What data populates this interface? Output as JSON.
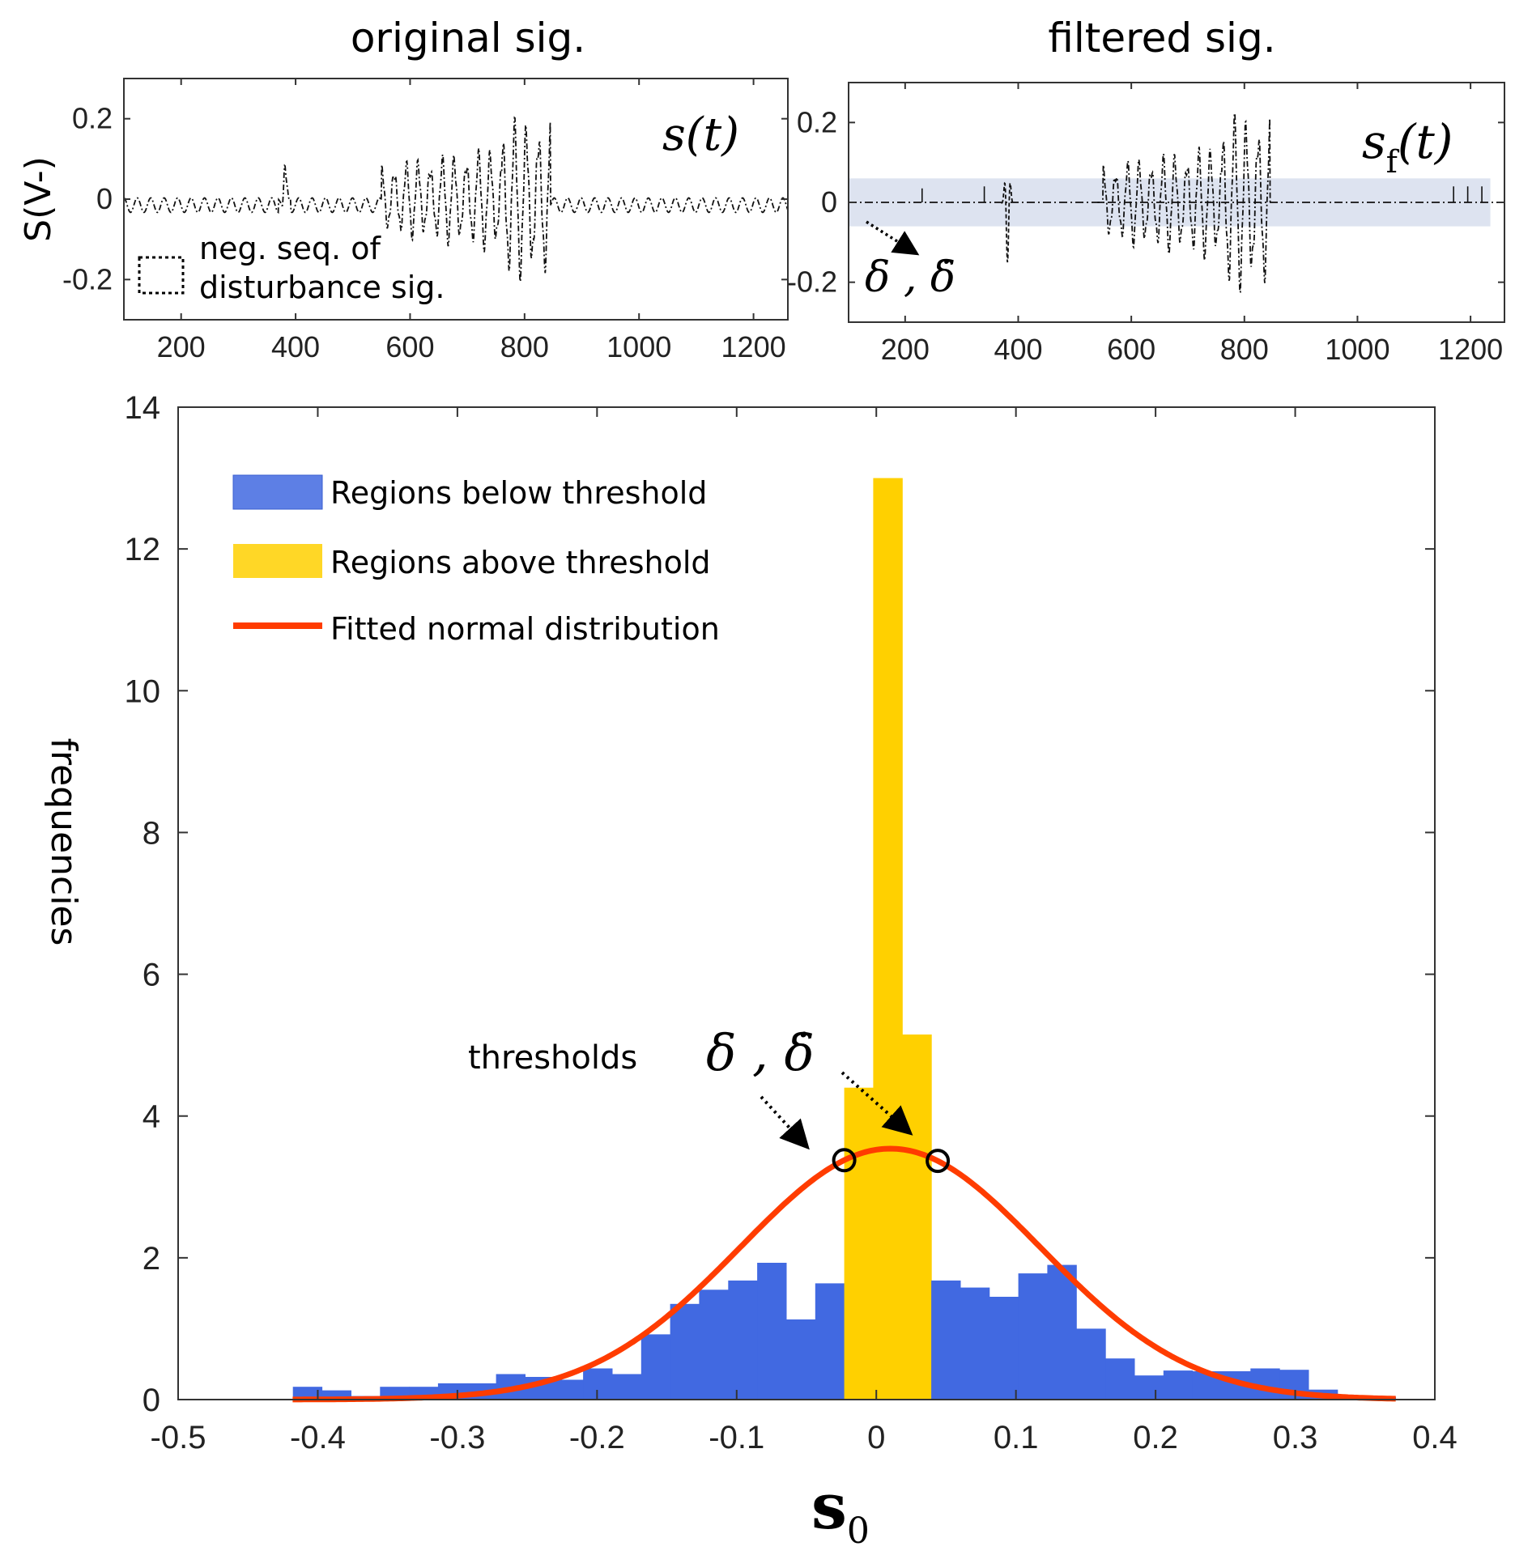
{
  "colors": {
    "below": "#4169e1",
    "above": "#ffd000",
    "fit": "#ff3c00",
    "band": "#dde3f0",
    "signal": "#111111"
  },
  "chart_data": [
    {
      "type": "line",
      "title": "original sig.",
      "ylabel": "S(V-)",
      "xlim": [
        100,
        1260
      ],
      "ylim": [
        -0.3,
        0.3
      ],
      "xticks": [
        "200",
        "400",
        "600",
        "800",
        "1000",
        "1200"
      ],
      "yticks": [
        "0.2",
        "0",
        "-0.2"
      ],
      "xtick_values": [
        200,
        400,
        600,
        800,
        1000,
        1200
      ],
      "ytick_values": [
        0.2,
        0,
        -0.2
      ],
      "label": "s(t)",
      "legend": [
        "neg. seq. of",
        "disturbance sig."
      ],
      "series_description": "baseline oscillation amplitude ~0.02; spike at ~380; disturbance burst 550-840 peaking ~±0.22"
    },
    {
      "type": "line",
      "title": "filtered sig.",
      "ylabel": "",
      "xlim": [
        100,
        1260
      ],
      "ylim": [
        -0.3,
        0.3
      ],
      "xticks": [
        "200",
        "400",
        "600",
        "800",
        "1000",
        "1200"
      ],
      "yticks": [
        "0.2",
        "0",
        "-0.2"
      ],
      "xtick_values": [
        200,
        400,
        600,
        800,
        1000,
        1200
      ],
      "ytick_values": [
        0.2,
        0,
        -0.2
      ],
      "label_main": "s",
      "label_sub": "f",
      "label_arg": "(t)",
      "band": [
        -0.06,
        0.06
      ],
      "annotation": "δ , δ̇"
    },
    {
      "type": "bar",
      "xlabel": "s",
      "xlabel_sub": "0",
      "ylabel": "frequencies",
      "xlim": [
        -0.5,
        0.4
      ],
      "ylim": [
        0,
        14
      ],
      "xticks": [
        "-0.5",
        "-0.4",
        "-0.3",
        "-0.2",
        "-0.1",
        "0",
        "0.1",
        "0.2",
        "0.3",
        "0.4"
      ],
      "yticks": [
        "0",
        "2",
        "4",
        "6",
        "8",
        "10",
        "12",
        "14"
      ],
      "xtick_values": [
        -0.5,
        -0.4,
        -0.3,
        -0.2,
        -0.1,
        0,
        0.1,
        0.2,
        0.3,
        0.4
      ],
      "ytick_values": [
        0,
        2,
        4,
        6,
        8,
        10,
        12,
        14
      ],
      "bin_start": -0.4178,
      "bin_width": 0.02078,
      "values": [
        0.18,
        0.13,
        0.05,
        0.18,
        0.18,
        0.23,
        0.23,
        0.36,
        0.32,
        0.28,
        0.44,
        0.36,
        0.92,
        1.35,
        1.55,
        1.68,
        1.93,
        1.13,
        1.64,
        4.4,
        13.0,
        5.15,
        1.68,
        1.58,
        1.45,
        1.78,
        1.9,
        1.0,
        0.58,
        0.34,
        0.41,
        0.4,
        0.4,
        0.44,
        0.42,
        0.14,
        0.05,
        0.04
      ],
      "threshold_bins": [
        19,
        20,
        21
      ],
      "fit": {
        "mean": 0.01,
        "sigma": 0.1075,
        "peak": 3.54,
        "xrange": [
          -0.418,
          0.372
        ]
      },
      "threshold_points": [
        -0.023,
        0.044
      ],
      "legend": [
        {
          "label": "Regions below threshold",
          "kind": "below"
        },
        {
          "label": "Regions above threshold",
          "kind": "above"
        },
        {
          "label": "Fitted normal distribution",
          "kind": "fit"
        }
      ],
      "annotation": "thresholds",
      "annotation_symbols": "δ , δ̇"
    }
  ]
}
